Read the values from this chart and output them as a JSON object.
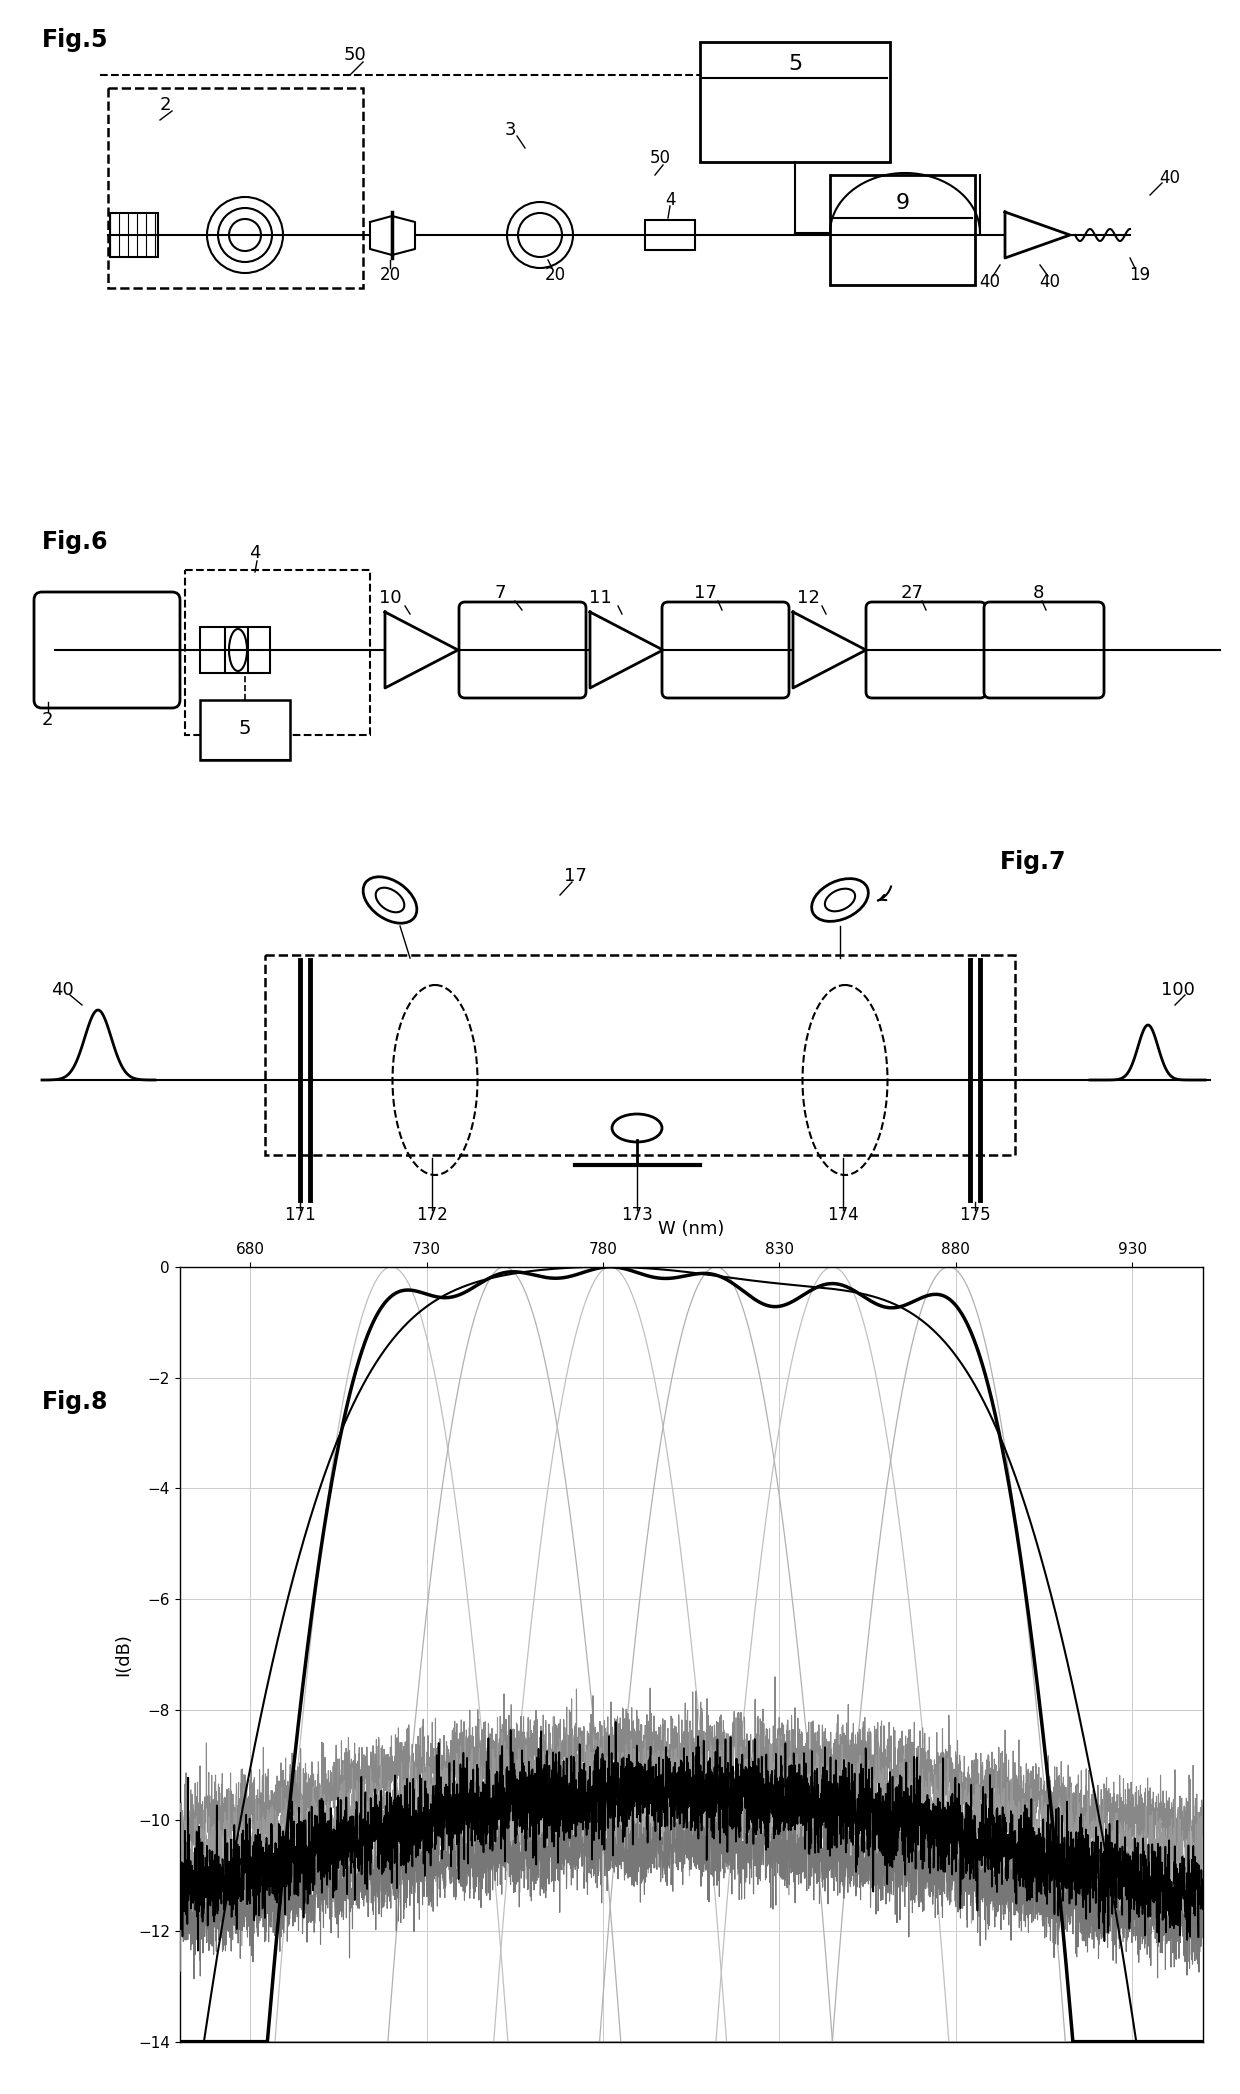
{
  "background_color": "#ffffff",
  "line_color": "#000000",
  "fig8_xlabel": "W (nm)",
  "fig8_ylabel": "I(dB)",
  "fig8_xticks": [
    680,
    730,
    780,
    830,
    880,
    930
  ],
  "fig8_xlim": [
    660,
    950
  ],
  "fig8_ylim": [
    -14,
    0
  ],
  "fig8_yticks": [
    0,
    -2,
    -4,
    -6,
    -8,
    -10,
    -12,
    -14
  ],
  "fig5_label": "Fig.5",
  "fig6_label": "Fig.6",
  "fig7_label": "Fig.7",
  "fig8_label": "Fig.8"
}
